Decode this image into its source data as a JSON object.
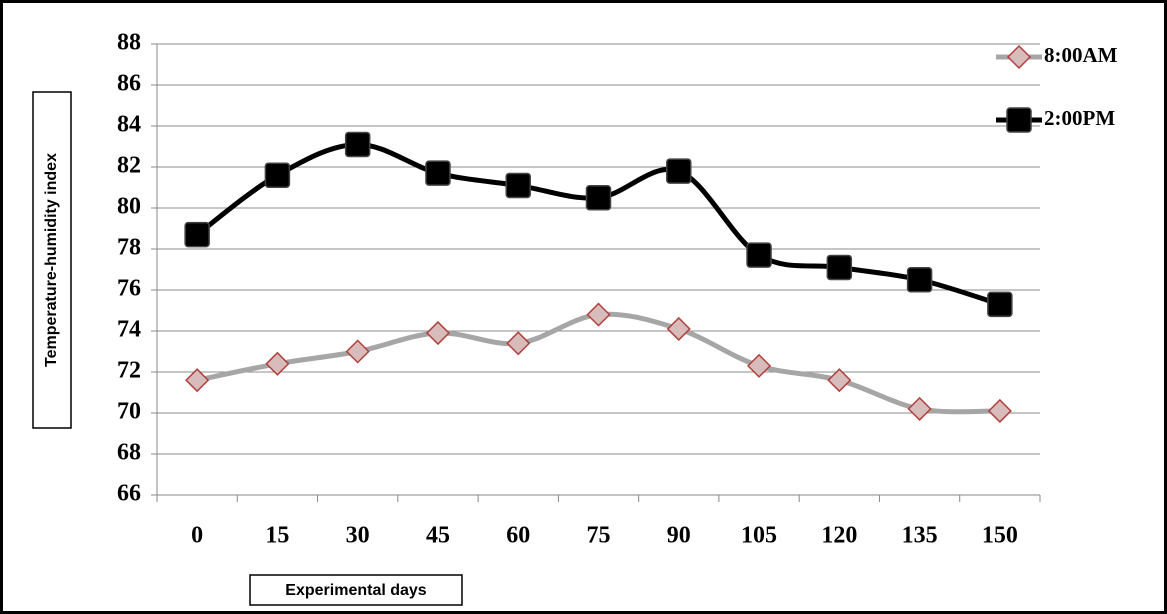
{
  "chart_data": {
    "type": "line",
    "x_label": "Experimental days",
    "y_label": "Temperature-humidity index",
    "categories": [
      "0",
      "15",
      "30",
      "45",
      "60",
      "75",
      "90",
      "105",
      "120",
      "135",
      "150"
    ],
    "series": [
      {
        "name": "8:00AM",
        "color": "#a6a6a6",
        "marker": "diamond",
        "marker_fill": "#d8bcbc",
        "marker_stroke": "#b0403c",
        "values": [
          71.6,
          72.4,
          73.0,
          73.9,
          73.4,
          74.8,
          74.1,
          72.3,
          71.6,
          70.2,
          70.1
        ]
      },
      {
        "name": "2:00PM",
        "color": "#000000",
        "marker": "square",
        "marker_fill": "#000000",
        "marker_stroke": "#000000",
        "values": [
          78.7,
          81.6,
          83.1,
          81.7,
          81.1,
          80.5,
          81.8,
          77.7,
          77.1,
          76.5,
          75.3
        ]
      }
    ],
    "ylim": [
      66,
      88
    ],
    "yticks": [
      66,
      68,
      70,
      72,
      74,
      76,
      78,
      80,
      82,
      84,
      86,
      88
    ],
    "grid": true,
    "smooth": true,
    "legend": "top-right"
  }
}
